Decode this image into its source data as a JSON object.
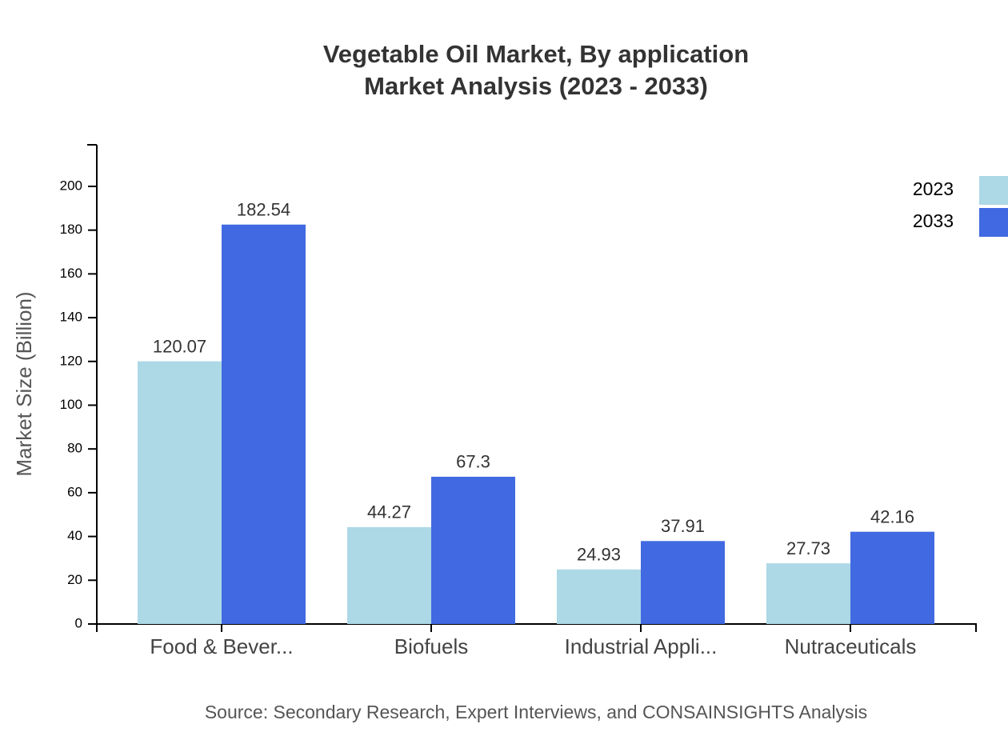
{
  "chart_data": {
    "type": "bar",
    "title": "Vegetable Oil Market, By application",
    "subtitle": "Market Analysis (2023 - 2033)",
    "y_label": "Market Size (Billion)",
    "source": "Source: Secondary Research, Expert Interviews, and CONSAINSIGHTS Analysis",
    "categories": [
      "Food & Bever...",
      "Biofuels",
      "Industrial Appli...",
      "Nutraceuticals"
    ],
    "series": [
      {
        "name": "2023",
        "color": "#add8e6",
        "values": [
          120.07,
          44.27,
          24.93,
          27.73
        ]
      },
      {
        "name": "2033",
        "color": "#4169e1",
        "values": [
          182.54,
          67.3,
          37.91,
          42.16
        ]
      }
    ],
    "ylim": [
      0,
      219
    ],
    "yticks": [
      0,
      20,
      40,
      60,
      80,
      100,
      120,
      140,
      160,
      180,
      200
    ],
    "legend": "top-right"
  }
}
